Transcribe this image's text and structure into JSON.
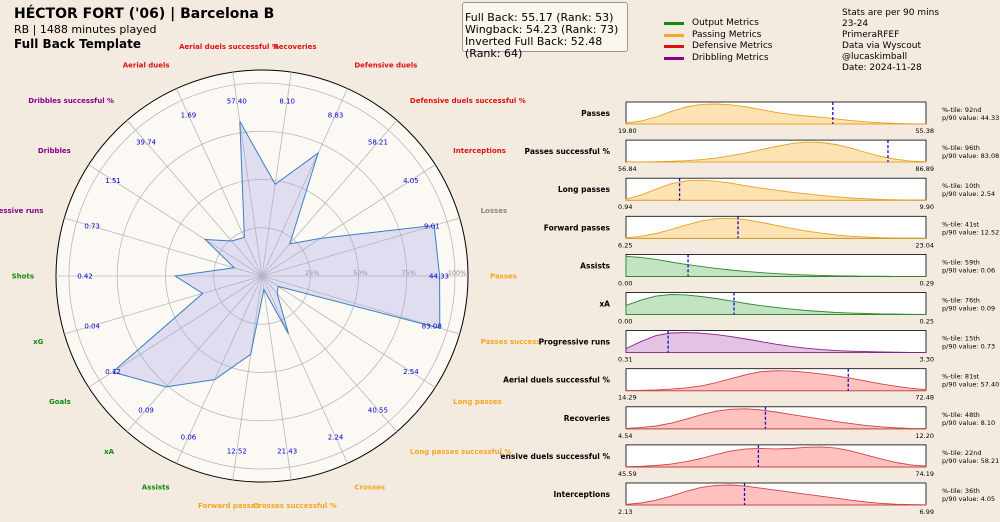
{
  "header": {
    "title": "HÉCTOR FORT ('06) | Barcelona B",
    "subtitle": "RB | 1488 minutes played",
    "template": "Full Back Template"
  },
  "scores": [
    "Full Back: 55.17 (Rank: 53)",
    "Wingback: 54.23 (Rank: 73)",
    "Inverted Full Back: 52.48 (Rank: 64)"
  ],
  "legend": [
    {
      "label": "Output Metrics",
      "color": "#118811"
    },
    {
      "label": "Passing Metrics",
      "color": "#f5a623"
    },
    {
      "label": "Defensive Metrics",
      "color": "#dd1111"
    },
    {
      "label": "Dribbling Metrics",
      "color": "#880088"
    }
  ],
  "info": [
    "Stats are per 90 mins",
    "23-24",
    "PrimeraRFEF",
    "Data via Wyscout",
    "@lucaskimball",
    "Date: 2024-11-28"
  ],
  "colors": {
    "output": "#118811",
    "passing": "#f5a623",
    "defensive": "#dd1111",
    "dribbling": "#880088",
    "neutral": "#888888",
    "value": "#0000cc"
  },
  "chart_data": [
    {
      "type": "radar",
      "ring_labels": [
        "25%",
        "50%",
        "75%",
        "100%"
      ],
      "metrics": [
        {
          "label": "Passes",
          "value": "44.33",
          "pct": 92,
          "group": "passing"
        },
        {
          "label": "Losses",
          "value": "9.01",
          "pct": 93,
          "group": "neutral"
        },
        {
          "label": "Interceptions",
          "value": "4.05",
          "pct": 36,
          "group": "defensive"
        },
        {
          "label": "Defensive duels successful %",
          "value": "58.21",
          "pct": 22,
          "group": "defensive"
        },
        {
          "label": "Defensive duels",
          "value": "8.83",
          "pct": 70,
          "group": "defensive"
        },
        {
          "label": "Recoveries",
          "value": "8.10",
          "pct": 48,
          "group": "defensive"
        },
        {
          "label": "Aerial duels successful %",
          "value": "57.40",
          "pct": 81,
          "group": "defensive"
        },
        {
          "label": "Aerial duels",
          "value": "1.69",
          "pct": 22,
          "group": "defensive"
        },
        {
          "label": "Dribbles successful %",
          "value": "39.74",
          "pct": 24,
          "group": "dribbling"
        },
        {
          "label": "Dribbles",
          "value": "1.51",
          "pct": 35,
          "group": "dribbling"
        },
        {
          "label": "Progressive runs",
          "value": "0.73",
          "pct": 15,
          "group": "dribbling"
        },
        {
          "label": "Shots",
          "value": "0.42",
          "pct": 45,
          "group": "output"
        },
        {
          "label": "xG",
          "value": "0.04",
          "pct": 32,
          "group": "output"
        },
        {
          "label": "Goals",
          "value": "0.12",
          "pct": 92,
          "group": "output"
        },
        {
          "label": "xA",
          "value": "0.09",
          "pct": 76,
          "group": "output"
        },
        {
          "label": "Assists",
          "value": "0.06",
          "pct": 59,
          "group": "output"
        },
        {
          "label": "Forward passes",
          "value": "12.52",
          "pct": 41,
          "group": "passing"
        },
        {
          "label": "Crosses successful %",
          "value": "21.43",
          "pct": 7,
          "group": "passing"
        },
        {
          "label": "Crosses",
          "value": "2.24",
          "pct": 33,
          "group": "passing"
        },
        {
          "label": "Long passes successful %",
          "value": "40.55",
          "pct": 12,
          "group": "passing"
        },
        {
          "label": "Long passes",
          "value": "2.54",
          "pct": 10,
          "group": "passing"
        },
        {
          "label": "Passes successful %",
          "value": "83.08",
          "pct": 96,
          "group": "passing"
        }
      ]
    },
    {
      "type": "area",
      "rows": [
        {
          "label": "Passes",
          "min": "19.80",
          "max": "55.38",
          "xmin": 19.8,
          "xmax": 55.38,
          "marker": 44.33,
          "pct_text": "%-tile: 92nd",
          "val_text": "p/90 value: 44.33",
          "group": "passing",
          "density": [
            0.05,
            0.15,
            0.35,
            0.62,
            0.85,
            0.98,
            1.0,
            0.96,
            0.86,
            0.72,
            0.58,
            0.47,
            0.4,
            0.34,
            0.26,
            0.17,
            0.11,
            0.06,
            0.03,
            0.01,
            0.0
          ]
        },
        {
          "label": "Passes successful %",
          "min": "56.84",
          "max": "86.89",
          "xmin": 56.84,
          "xmax": 86.89,
          "marker": 83.08,
          "pct_text": "%-tile: 96th",
          "val_text": "p/90 value: 83.08",
          "group": "passing",
          "density": [
            0.0,
            0.01,
            0.02,
            0.04,
            0.07,
            0.12,
            0.2,
            0.32,
            0.46,
            0.62,
            0.78,
            0.92,
            1.0,
            0.98,
            0.88,
            0.7,
            0.48,
            0.28,
            0.14,
            0.05,
            0.02
          ]
        },
        {
          "label": "Long passes",
          "min": "0.94",
          "max": "9.90",
          "xmin": 0.94,
          "xmax": 9.9,
          "marker": 2.54,
          "pct_text": "%-tile: 10th",
          "val_text": "p/90 value: 2.54",
          "group": "passing",
          "density": [
            0.05,
            0.25,
            0.55,
            0.82,
            0.97,
            1.0,
            0.95,
            0.85,
            0.72,
            0.6,
            0.5,
            0.4,
            0.32,
            0.24,
            0.17,
            0.11,
            0.07,
            0.04,
            0.02,
            0.01,
            0.0
          ]
        },
        {
          "label": "Forward passes",
          "min": "6.25",
          "max": "23.04",
          "xmin": 6.25,
          "xmax": 23.04,
          "marker": 12.52,
          "pct_text": "%-tile: 41st",
          "val_text": "p/90 value: 12.52",
          "group": "passing",
          "density": [
            0.02,
            0.1,
            0.24,
            0.44,
            0.66,
            0.86,
            0.98,
            1.0,
            0.93,
            0.8,
            0.65,
            0.5,
            0.37,
            0.26,
            0.17,
            0.1,
            0.06,
            0.03,
            0.01,
            0.01,
            0.0
          ]
        },
        {
          "label": "Assists",
          "min": "0.00",
          "max": "0.29",
          "xmin": 0.0,
          "xmax": 0.29,
          "marker": 0.06,
          "pct_text": "%-tile: 59th",
          "val_text": "p/90 value: 0.06",
          "group": "output",
          "density": [
            1.0,
            0.95,
            0.85,
            0.72,
            0.6,
            0.5,
            0.4,
            0.32,
            0.25,
            0.19,
            0.14,
            0.1,
            0.07,
            0.05,
            0.03,
            0.02,
            0.01,
            0.01,
            0.0,
            0.0,
            0.0
          ]
        },
        {
          "label": "xA",
          "min": "0.00",
          "max": "0.25",
          "xmin": 0.0,
          "xmax": 0.25,
          "marker": 0.09,
          "pct_text": "%-tile: 76th",
          "val_text": "p/90 value: 0.09",
          "group": "output",
          "density": [
            0.45,
            0.72,
            0.92,
            1.0,
            0.98,
            0.9,
            0.8,
            0.68,
            0.55,
            0.44,
            0.35,
            0.27,
            0.2,
            0.15,
            0.1,
            0.07,
            0.05,
            0.03,
            0.02,
            0.01,
            0.0
          ]
        },
        {
          "label": "Progressive runs",
          "min": "0.31",
          "max": "3.30",
          "xmin": 0.31,
          "xmax": 3.3,
          "marker": 0.73,
          "pct_text": "%-tile: 15th",
          "val_text": "p/90 value: 0.73",
          "group": "dribbling",
          "density": [
            0.2,
            0.55,
            0.85,
            0.98,
            1.0,
            0.97,
            0.9,
            0.8,
            0.68,
            0.55,
            0.42,
            0.31,
            0.22,
            0.15,
            0.1,
            0.07,
            0.05,
            0.03,
            0.02,
            0.01,
            0.0
          ]
        },
        {
          "label": "Aerial duels successful %",
          "min": "14.29",
          "max": "72.48",
          "xmin": 14.29,
          "xmax": 72.48,
          "marker": 57.4,
          "pct_text": "%-tile: 81st",
          "val_text": "p/90 value: 57.40",
          "group": "defensive",
          "density": [
            0.0,
            0.02,
            0.04,
            0.08,
            0.14,
            0.24,
            0.4,
            0.6,
            0.8,
            0.95,
            1.0,
            0.98,
            0.92,
            0.84,
            0.74,
            0.62,
            0.48,
            0.34,
            0.22,
            0.12,
            0.05
          ]
        },
        {
          "label": "Recoveries",
          "min": "4.54",
          "max": "12.20",
          "xmin": 4.54,
          "xmax": 12.2,
          "marker": 8.1,
          "pct_text": "%-tile: 48th",
          "val_text": "p/90 value: 8.10",
          "group": "defensive",
          "density": [
            0.02,
            0.06,
            0.14,
            0.28,
            0.48,
            0.7,
            0.88,
            0.98,
            1.0,
            0.94,
            0.84,
            0.72,
            0.6,
            0.48,
            0.36,
            0.26,
            0.17,
            0.1,
            0.05,
            0.02,
            0.01
          ]
        },
        {
          "label": "Defensive duels successful %",
          "min": "45.59",
          "max": "74.19",
          "xmin": 45.59,
          "xmax": 74.19,
          "marker": 58.21,
          "pct_text": "%-tile: 22nd",
          "val_text": "p/90 value: 58.21",
          "group": "defensive",
          "density": [
            0.01,
            0.03,
            0.07,
            0.14,
            0.26,
            0.42,
            0.62,
            0.8,
            0.9,
            0.92,
            0.9,
            0.92,
            0.98,
            1.0,
            0.94,
            0.8,
            0.6,
            0.4,
            0.22,
            0.1,
            0.04
          ]
        },
        {
          "label": "Interceptions",
          "min": "2.13",
          "max": "6.99",
          "xmin": 2.13,
          "xmax": 6.99,
          "marker": 4.05,
          "pct_text": "%-tile: 36th",
          "val_text": "p/90 value: 4.05",
          "group": "defensive",
          "density": [
            0.03,
            0.1,
            0.24,
            0.44,
            0.68,
            0.88,
            0.98,
            1.0,
            0.94,
            0.84,
            0.74,
            0.64,
            0.54,
            0.44,
            0.34,
            0.24,
            0.15,
            0.08,
            0.04,
            0.02,
            0.01
          ]
        }
      ]
    }
  ]
}
